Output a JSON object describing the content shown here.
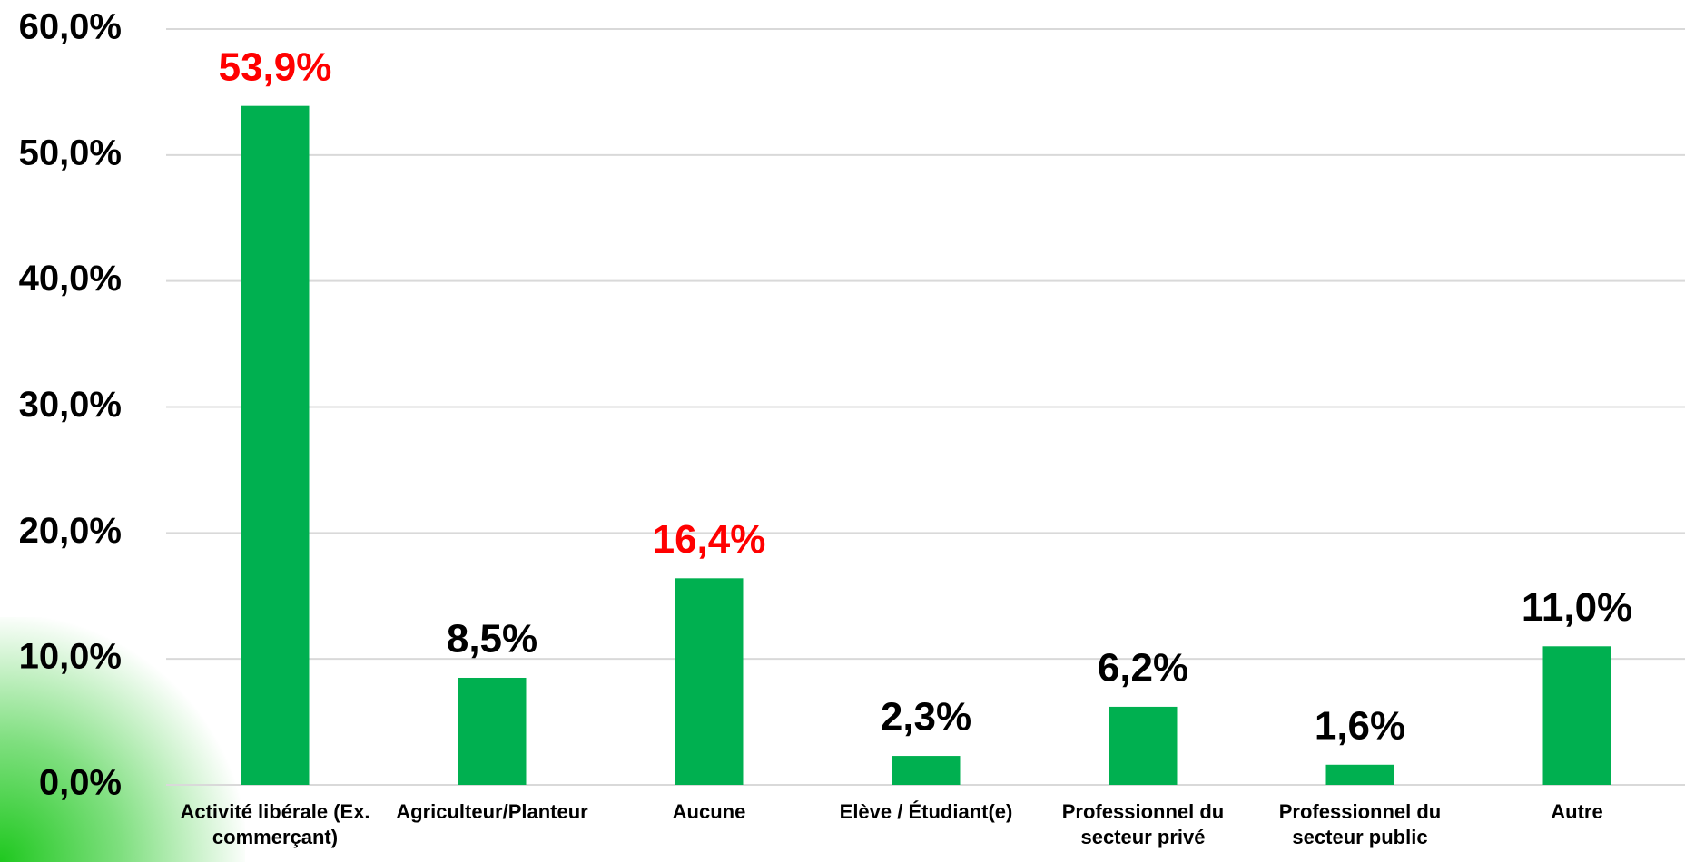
{
  "chart_data": {
    "type": "bar",
    "categories": [
      "Activité libérale (Ex. commerçant)",
      "Agriculteur/Planteur",
      "Aucune",
      "Elève / Étudiant(e)",
      "Professionnel du secteur privé",
      "Professionnel du secteur public",
      "Autre"
    ],
    "values": [
      53.9,
      8.5,
      16.4,
      2.3,
      6.2,
      1.6,
      11.0
    ],
    "value_labels": [
      "53,9%",
      "8,5%",
      "16,4%",
      "2,3%",
      "6,2%",
      "1,6%",
      "11,0%"
    ],
    "value_label_colors": [
      "#ff0000",
      "#000000",
      "#ff0000",
      "#000000",
      "#000000",
      "#000000",
      "#000000"
    ],
    "color": "#00b050",
    "ylim": [
      0,
      60
    ],
    "yticks": [
      {
        "value": 0,
        "label": "0,0%"
      },
      {
        "value": 10,
        "label": "10,0%"
      },
      {
        "value": 20,
        "label": "20,0%"
      },
      {
        "value": 30,
        "label": "30,0%"
      },
      {
        "value": 40,
        "label": "40,0%"
      },
      {
        "value": 50,
        "label": "50,0%"
      },
      {
        "value": 60,
        "label": "60,0%"
      }
    ],
    "grid": true
  }
}
